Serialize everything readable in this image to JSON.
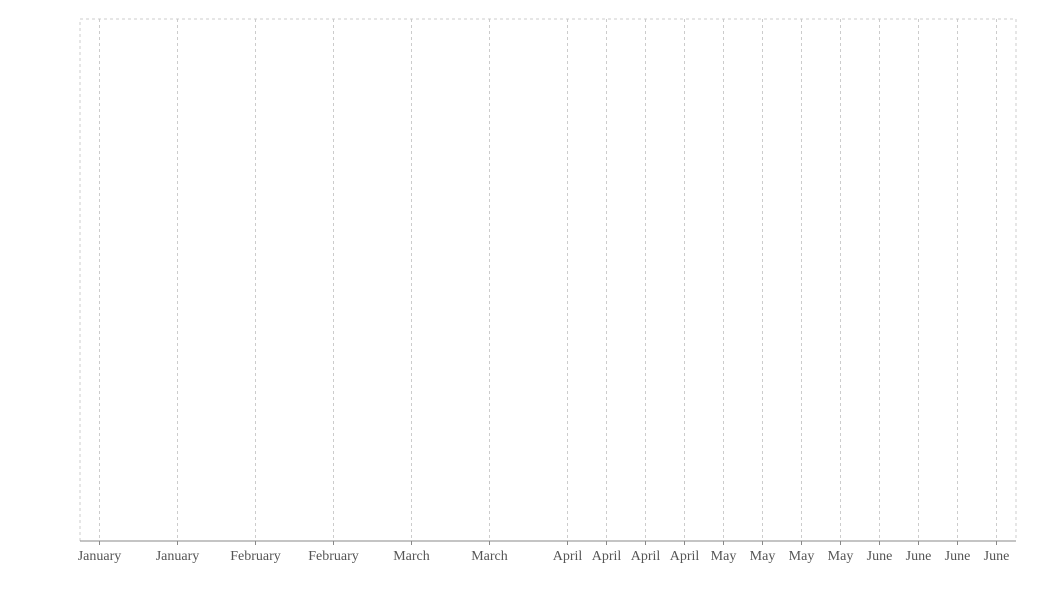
{
  "chart_data": {
    "type": "line",
    "title": "",
    "xlabel": "",
    "ylabel": "",
    "grid": true,
    "series": [],
    "x_ticks": [
      {
        "label": "January",
        "pos": 0
      },
      {
        "label": "January",
        "pos": 2
      },
      {
        "label": "February",
        "pos": 4
      },
      {
        "label": "February",
        "pos": 6
      },
      {
        "label": "March",
        "pos": 8
      },
      {
        "label": "March",
        "pos": 10
      },
      {
        "label": "April",
        "pos": 12
      },
      {
        "label": "April",
        "pos": 13
      },
      {
        "label": "April",
        "pos": 14
      },
      {
        "label": "April",
        "pos": 15
      },
      {
        "label": "May",
        "pos": 16
      },
      {
        "label": "May",
        "pos": 17
      },
      {
        "label": "May",
        "pos": 18
      },
      {
        "label": "May",
        "pos": 19
      },
      {
        "label": "June",
        "pos": 20
      },
      {
        "label": "June",
        "pos": 21
      },
      {
        "label": "June",
        "pos": 22
      },
      {
        "label": "June",
        "pos": 23
      }
    ],
    "x_range": [
      -0.5,
      23.5
    ]
  },
  "colors": {
    "grid": "#cccccc",
    "axis": "#888888",
    "tick_text": "#555555",
    "background": "#ffffff"
  }
}
